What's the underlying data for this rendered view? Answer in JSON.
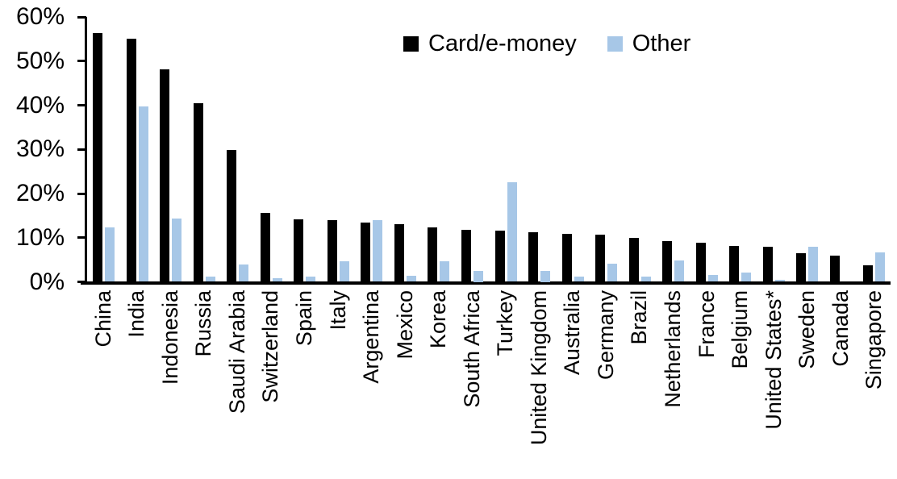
{
  "chart_data": {
    "type": "bar",
    "title": "",
    "xlabel": "",
    "ylabel": "",
    "ylim": [
      0,
      60
    ],
    "yticks": [
      {
        "value": 0,
        "label": "0%"
      },
      {
        "value": 10,
        "label": "10%"
      },
      {
        "value": 20,
        "label": "20%"
      },
      {
        "value": 30,
        "label": "30%"
      },
      {
        "value": 40,
        "label": "40%"
      },
      {
        "value": 50,
        "label": "50%"
      },
      {
        "value": 60,
        "label": "60%"
      }
    ],
    "grid": false,
    "legend_position": "top-center",
    "categories": [
      "China",
      "India",
      "Indonesia",
      "Russia",
      "Saudi Arabia",
      "Switzerland",
      "Spain",
      "Italy",
      "Argentina",
      "Mexico",
      "Korea",
      "South Africa",
      "Turkey",
      "United Kingdom",
      "Australia",
      "Germany",
      "Brazil",
      "Netherlands",
      "France",
      "Belgium",
      "United States*",
      "Sweden",
      "Canada",
      "Singapore"
    ],
    "series": [
      {
        "name": "Card/e-money",
        "color": "#000000",
        "values": [
          56.3,
          55.1,
          48.2,
          40.5,
          29.8,
          15.6,
          14.2,
          14.0,
          13.4,
          13.0,
          12.3,
          11.8,
          11.6,
          11.2,
          10.8,
          10.7,
          9.9,
          9.3,
          8.8,
          8.2,
          7.9,
          6.5,
          6.0,
          3.8
        ]
      },
      {
        "name": "Other",
        "color": "#A7C7E7",
        "values": [
          12.4,
          39.8,
          14.4,
          1.1,
          3.9,
          0.8,
          1.1,
          4.6,
          13.9,
          1.4,
          4.7,
          2.5,
          22.6,
          2.5,
          1.1,
          4.1,
          1.2,
          4.9,
          1.6,
          2.1,
          0.4,
          8.0,
          0.0,
          6.7
        ]
      }
    ],
    "axis_color": "#000000"
  }
}
